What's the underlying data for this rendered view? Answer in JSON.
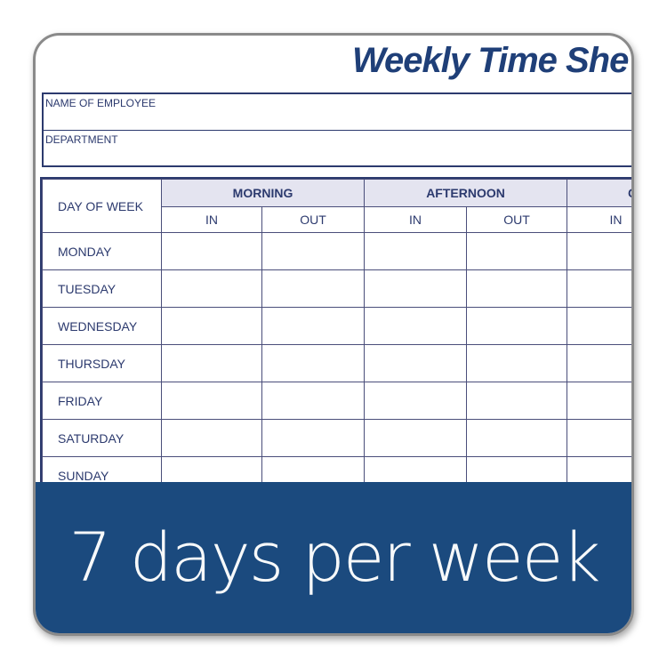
{
  "title": "Weekly Time She",
  "info_fields": [
    "NAME OF EMPLOYEE",
    "DEPARTMENT"
  ],
  "table": {
    "day_header": "DAY OF WEEK",
    "groups": [
      "MORNING",
      "AFTERNOON",
      "C"
    ],
    "sub_headers": [
      "IN",
      "OUT",
      "IN",
      "OUT",
      "IN"
    ],
    "days": [
      "MONDAY",
      "TUESDAY",
      "WEDNESDAY",
      "THURSDAY",
      "FRIDAY",
      "SATURDAY",
      "SUNDAY"
    ]
  },
  "banner": {
    "text": "7 days per week",
    "color": "#1b4a7e"
  },
  "accent_color": "#1f3f78"
}
